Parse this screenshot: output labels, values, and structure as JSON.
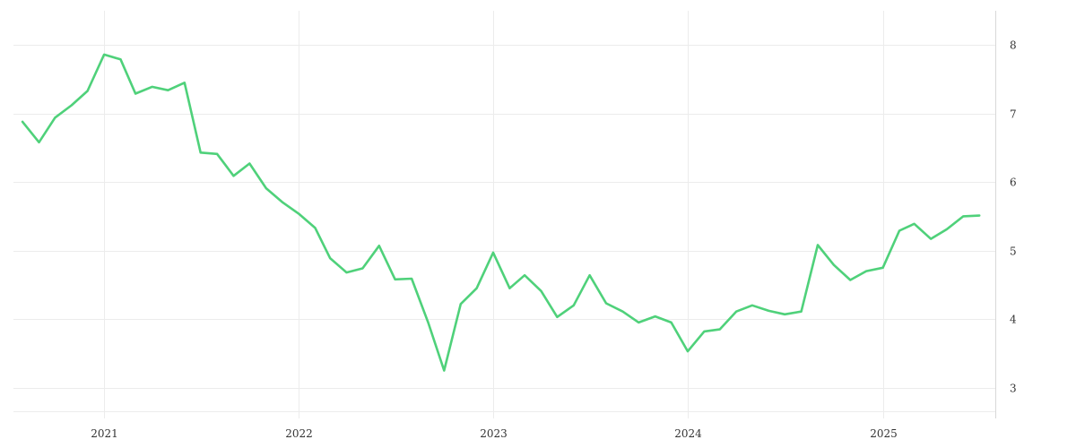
{
  "chart_data": {
    "type": "line",
    "title": "",
    "xlabel": "",
    "ylabel": "",
    "y_axis_side": "right",
    "grid": true,
    "legend": "none",
    "colors": {
      "line": "#4fd17a",
      "grid": "#ececec",
      "axis": "#d8d8d8",
      "text": "#333333"
    },
    "xlim": [
      "2020-07-15",
      "2025-07-31"
    ],
    "ylim": [
      2.55,
      8.5
    ],
    "x_ticks": [
      {
        "value": "2021-01-01",
        "label": "2021"
      },
      {
        "value": "2022-01-01",
        "label": "2022"
      },
      {
        "value": "2023-01-01",
        "label": "2023"
      },
      {
        "value": "2024-01-01",
        "label": "2024"
      },
      {
        "value": "2025-01-01",
        "label": "2025"
      }
    ],
    "y_ticks": [
      {
        "value": 3,
        "label": "3"
      },
      {
        "value": 4,
        "label": "4"
      },
      {
        "value": 5,
        "label": "5"
      },
      {
        "value": 6,
        "label": "6"
      },
      {
        "value": 7,
        "label": "7"
      },
      {
        "value": 8,
        "label": "8"
      }
    ],
    "series": [
      {
        "x": [
          "2020-08-01",
          "2020-09-01",
          "2020-10-01",
          "2020-11-01",
          "2020-12-01",
          "2021-01-01",
          "2021-02-01",
          "2021-03-01",
          "2021-04-01",
          "2021-05-01",
          "2021-06-01",
          "2021-07-01",
          "2021-08-01",
          "2021-09-01",
          "2021-10-01",
          "2021-11-01",
          "2021-12-01",
          "2022-01-01",
          "2022-02-01",
          "2022-03-01",
          "2022-04-01",
          "2022-05-01",
          "2022-06-01",
          "2022-07-01",
          "2022-08-01",
          "2022-09-01",
          "2022-10-01",
          "2022-11-01",
          "2022-12-01",
          "2023-01-01",
          "2023-02-01",
          "2023-03-01",
          "2023-04-01",
          "2023-05-01",
          "2023-06-01",
          "2023-07-01",
          "2023-08-01",
          "2023-09-01",
          "2023-10-01",
          "2023-11-01",
          "2023-12-01",
          "2024-01-01",
          "2024-02-01",
          "2024-03-01",
          "2024-04-01",
          "2024-05-01",
          "2024-06-01",
          "2024-07-01",
          "2024-08-01",
          "2024-09-01",
          "2024-10-01",
          "2024-11-01",
          "2024-12-01",
          "2025-01-01",
          "2025-02-01",
          "2025-03-01",
          "2025-04-01",
          "2025-05-01",
          "2025-06-01",
          "2025-07-01"
        ],
        "values": [
          6.88,
          6.58,
          6.94,
          7.12,
          7.33,
          7.86,
          7.79,
          7.29,
          7.39,
          7.34,
          7.45,
          6.43,
          6.41,
          6.09,
          6.27,
          5.91,
          5.71,
          5.54,
          5.33,
          4.89,
          4.68,
          4.74,
          5.07,
          4.58,
          4.59,
          3.95,
          3.25,
          4.22,
          4.45,
          4.97,
          4.45,
          4.64,
          4.41,
          4.03,
          4.2,
          4.64,
          4.23,
          4.11,
          3.95,
          4.04,
          3.95,
          3.53,
          3.82,
          3.85,
          4.11,
          4.2,
          4.12,
          4.07,
          4.11,
          5.08,
          4.79,
          4.57,
          4.7,
          4.75,
          5.29,
          5.39,
          5.17,
          5.31,
          5.5,
          5.51
        ]
      }
    ]
  }
}
